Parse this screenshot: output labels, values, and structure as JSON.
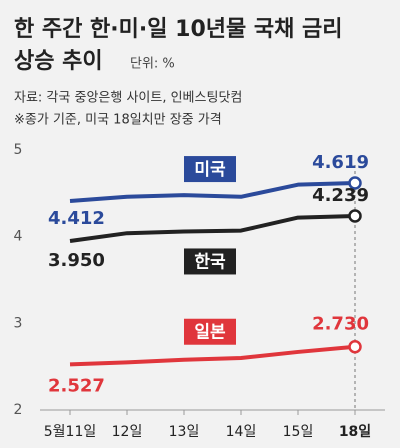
{
  "chart_data": {
    "type": "line",
    "title": [
      "한 주간 한·미·일 10년물 국채 금리",
      "상승 추이"
    ],
    "unit": "단위: %",
    "source": "자료: 각국 중앙은행 사이트, 인베스팅닷컴",
    "note": "※종가 기준, 미국 18일치만 장중 가격",
    "categories": [
      "5월11일",
      "12일",
      "13일",
      "14일",
      "15일",
      "18일"
    ],
    "series": [
      {
        "name": "미국",
        "color": "#2b4a9b",
        "values": [
          4.412,
          4.46,
          4.48,
          4.46,
          4.6,
          4.619
        ],
        "value_labels": [
          "4.412",
          null,
          null,
          null,
          null,
          "4.619"
        ]
      },
      {
        "name": "한국",
        "color": "#222222",
        "values": [
          3.95,
          4.04,
          4.06,
          4.07,
          4.22,
          4.239
        ],
        "value_labels": [
          "3.950",
          null,
          null,
          null,
          null,
          "4.239"
        ]
      },
      {
        "name": "일본",
        "color": "#e0363c",
        "values": [
          2.527,
          2.55,
          2.58,
          2.6,
          2.67,
          2.73
        ],
        "value_labels": [
          "2.527",
          null,
          null,
          null,
          null,
          "2.730"
        ]
      }
    ],
    "ylim": [
      2,
      5
    ],
    "yticks": [
      2,
      3,
      4,
      5
    ],
    "grid": false
  }
}
